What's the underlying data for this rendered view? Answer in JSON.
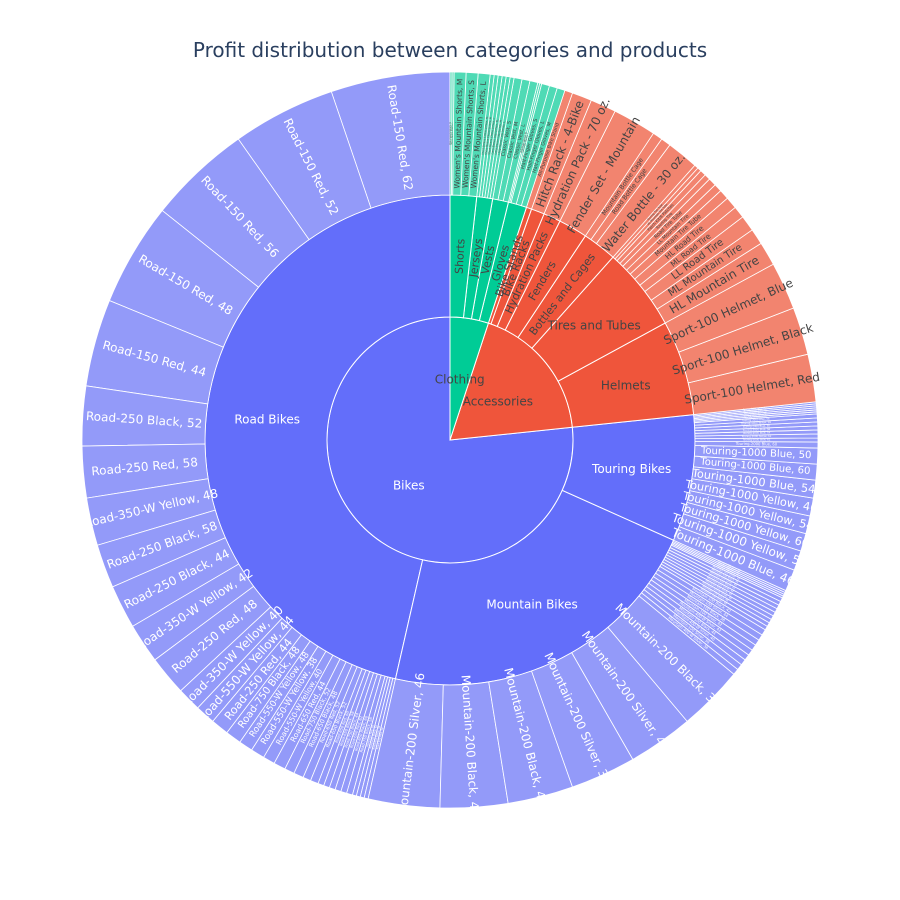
{
  "chart_data": {
    "type": "sunburst",
    "title": "Profit distribution between categories and products",
    "colors": {
      "Bikes": "#636efa",
      "Accessories": "#ef553b",
      "Clothing": "#00cc96"
    },
    "root": {
      "name": "",
      "children": [
        {
          "name": "Bikes",
          "children": [
            {
              "name": "Road Bikes",
              "children": [
                {
                  "name": "Road-150 Red, 62",
                  "value": 60
                },
                {
                  "name": "Road-150 Red, 52",
                  "value": 52
                },
                {
                  "name": "Road-150 Red, 56",
                  "value": 52
                },
                {
                  "name": "Road-150 Red, 48",
                  "value": 52
                },
                {
                  "name": "Road-150 Red, 44",
                  "value": 44
                },
                {
                  "name": "Road-250 Black, 52",
                  "value": 30
                },
                {
                  "name": "Road-250 Red, 58",
                  "value": 26
                },
                {
                  "name": "Road-350-W Yellow, 48",
                  "value": 24
                },
                {
                  "name": "Road-250 Black, 58",
                  "value": 22
                },
                {
                  "name": "Road-250 Black, 44",
                  "value": 22
                },
                {
                  "name": "Road-350-W Yellow, 42",
                  "value": 20
                },
                {
                  "name": "Road-250 Red, 48",
                  "value": 20
                },
                {
                  "name": "Road-350-W Yellow, 40",
                  "value": 12
                },
                {
                  "name": "Road-550-W Yellow, 44",
                  "value": 10
                },
                {
                  "name": "Road-250 Red, 44",
                  "value": 9
                },
                {
                  "name": "Road-750 Black, 48",
                  "value": 8
                },
                {
                  "name": "Road-550-W Yellow, 48",
                  "value": 7
                },
                {
                  "name": "Road-550-W Yellow, 38",
                  "value": 7
                },
                {
                  "name": "Road-550-W Yellow, 40",
                  "value": 6
                },
                {
                  "name": "Road-650 Red, 44",
                  "value": 6
                },
                {
                  "name": "Road-750 Black, 52",
                  "value": 5
                },
                {
                  "name": "Road-650 Black, 48",
                  "value": 5
                },
                {
                  "name": "Road-650 Red, 52",
                  "value": 4
                },
                {
                  "name": "Road-650 Black, 52",
                  "value": 4
                },
                {
                  "name": "Road-650 Red, 60",
                  "value": 3
                },
                {
                  "name": "Road-650 Black, 58",
                  "value": 3
                },
                {
                  "name": "Road-750 Black, 44",
                  "value": 3
                },
                {
                  "name": "Road-650 Red, 62",
                  "value": 3
                },
                {
                  "name": "Road-650 Black, 60",
                  "value": 3
                },
                {
                  "name": "Road-750 Black, 58",
                  "value": 3
                },
                {
                  "name": "Road-650 Red, 58",
                  "value": 2
                },
                {
                  "name": "Road-650 Black, 62",
                  "value": 2
                },
                {
                  "name": "Road-650 Black, 44",
                  "value": 2
                },
                {
                  "name": "Road-650 Red, 48",
                  "value": 2
                }
              ]
            },
            {
              "name": "Mountain Bikes",
              "children": [
                {
                  "name": "Mountain-200 Silver, 46",
                  "value": 36
                },
                {
                  "name": "Mountain-200 Black, 42",
                  "value": 34
                },
                {
                  "name": "Mountain-200 Black, 46",
                  "value": 33
                },
                {
                  "name": "Mountain-200 Silver, 38",
                  "value": 33
                },
                {
                  "name": "Mountain-200 Silver, 42",
                  "value": 33
                },
                {
                  "name": "Mountain-200 Black, 38",
                  "value": 33
                },
                {
                  "name": "Mountain-400-W Silver, 38",
                  "value": 3
                },
                {
                  "name": "Mountain-100 Silver, 38",
                  "value": 3
                },
                {
                  "name": "Mountain-400-W Silver, 40",
                  "value": 3
                },
                {
                  "name": "Mountain-100 Black, 44",
                  "value": 3
                },
                {
                  "name": "Mountain-400-W Silver, 42",
                  "value": 3
                },
                {
                  "name": "Mountain-100 Silver, 42",
                  "value": 3
                },
                {
                  "name": "Mountain-100 Black, 38",
                  "value": 3
                },
                {
                  "name": "Mountain-100 Silver, 44",
                  "value": 3
                },
                {
                  "name": "Mountain-100 Black, 42",
                  "value": 3
                },
                {
                  "name": "Mountain-100 Silver, 48",
                  "value": 2
                },
                {
                  "name": "Mountain-100 Black, 48",
                  "value": 2
                },
                {
                  "name": "Mountain-400-W Silver, 46",
                  "value": 2
                },
                {
                  "name": "Mountain-500 Black, 40",
                  "value": 2
                },
                {
                  "name": "Mountain-500 Silver, 44",
                  "value": 2
                },
                {
                  "name": "Mountain-500 Black, 42",
                  "value": 2
                },
                {
                  "name": "Mountain-500 Silver, 40",
                  "value": 2
                },
                {
                  "name": "Mountain-500 Black, 44",
                  "value": 2
                },
                {
                  "name": "Mountain-500 Silver, 42",
                  "value": 2
                },
                {
                  "name": "Mountain-500 Black, 48",
                  "value": 1
                },
                {
                  "name": "Mountain-500 Silver, 48",
                  "value": 1
                },
                {
                  "name": "Mountain-500 Black, 52",
                  "value": 1
                },
                {
                  "name": "Mountain-500 Silver, 52",
                  "value": 1
                }
              ]
            },
            {
              "name": "Touring Bikes",
              "children": [
                {
                  "name": "Touring-1000 Blue, 46",
                  "value": 11
                },
                {
                  "name": "Touring-1000 Yellow, 50",
                  "value": 10
                },
                {
                  "name": "Touring-1000 Yellow, 60",
                  "value": 9
                },
                {
                  "name": "Touring-1000 Yellow, 54",
                  "value": 9
                },
                {
                  "name": "Touring-1000 Yellow, 46",
                  "value": 9
                },
                {
                  "name": "Touring-1000 Blue, 54",
                  "value": 9
                },
                {
                  "name": "Touring-1000 Blue, 60",
                  "value": 8
                },
                {
                  "name": "Touring-1000 Blue, 50",
                  "value": 8
                },
                {
                  "name": "Touring-2000 Blue, 60",
                  "value": 3
                },
                {
                  "name": "Touring-3000 Blue, 62",
                  "value": 2
                },
                {
                  "name": "Touring-3000 Yellow, 62",
                  "value": 2
                },
                {
                  "name": "Touring-2000 Blue, 54",
                  "value": 2
                },
                {
                  "name": "Touring-3000 Blue, 58",
                  "value": 2
                },
                {
                  "name": "Touring-2000 Blue, 50",
                  "value": 2
                },
                {
                  "name": "Touring-3000 Yellow, 58",
                  "value": 2
                },
                {
                  "name": "Touring-3000 Blue, 54",
                  "value": 2
                },
                {
                  "name": "Touring-2000 Blue, 46",
                  "value": 1
                },
                {
                  "name": "Touring-3000 Yellow, 54",
                  "value": 1
                },
                {
                  "name": "Touring-3000 Blue, 50",
                  "value": 1
                },
                {
                  "name": "Touring-3000 Yellow, 50",
                  "value": 1
                },
                {
                  "name": "Touring-3000 Blue, 44",
                  "value": 1
                },
                {
                  "name": "Touring-3000 Yellow, 44",
                  "value": 1
                }
              ]
            }
          ]
        },
        {
          "name": "Accessories",
          "children": [
            {
              "name": "Helmets",
              "children": [
                {
                  "name": "Sport-100 Helmet, Red",
                  "value": 24
                },
                {
                  "name": "Sport-100 Helmet, Black",
                  "value": 24
                },
                {
                  "name": "Sport-100 Helmet, Blue",
                  "value": 24
                }
              ]
            },
            {
              "name": "Tires and Tubes",
              "children": [
                {
                  "name": "HL Mountain Tire",
                  "value": 12
                },
                {
                  "name": "ML Mountain Tire",
                  "value": 8
                },
                {
                  "name": "LL Road Tire",
                  "value": 8
                },
                {
                  "name": "ML Road Tire",
                  "value": 6
                },
                {
                  "name": "HL Road Tire",
                  "value": 6
                },
                {
                  "name": "Mountain Tire Tube",
                  "value": 5
                },
                {
                  "name": "LL Mountain Tire",
                  "value": 4
                },
                {
                  "name": "Road Tire Tube",
                  "value": 4
                },
                {
                  "name": "Touring Tire",
                  "value": 3
                },
                {
                  "name": "Patch Kit/8 Patches",
                  "value": 3
                },
                {
                  "name": "HL Mountain Tire Tube",
                  "value": 2
                },
                {
                  "name": "Touring Tire Tube",
                  "value": 2
                }
              ]
            },
            {
              "name": "Bottles and Cages",
              "children": [
                {
                  "name": "Water Bottle - 30 oz.",
                  "value": 16
                },
                {
                  "name": "Road Bottle Cage",
                  "value": 5
                },
                {
                  "name": "Mountain Bottle Cage",
                  "value": 5
                }
              ]
            },
            {
              "name": "Fenders",
              "children": [
                {
                  "name": "Fender Set - Mountain",
                  "value": 22
                }
              ]
            },
            {
              "name": "Hydration Packs",
              "children": [
                {
                  "name": "Hydration Pack - 70 oz.",
                  "value": 13
                }
              ]
            },
            {
              "name": "Bike Racks",
              "children": [
                {
                  "name": "Hitch Rack - 4-Bike",
                  "value": 10
                }
              ]
            },
            {
              "name": "Bike Stands",
              "children": [
                {
                  "name": "All-Purpose Bike Stand",
                  "value": 4
                }
              ]
            }
          ]
        },
        {
          "name": "Clothing",
          "children": [
            {
              "name": "Gloves",
              "children": [
                {
                  "name": "Half-Finger Gloves, M",
                  "value": 4
                },
                {
                  "name": "Half-Finger Gloves, L",
                  "value": 4
                },
                {
                  "name": "Half-Finger Gloves, S",
                  "value": 4
                },
                {
                  "name": "Full-Finger Gloves, L",
                  "value": 1
                },
                {
                  "name": "Full-Finger Gloves, M",
                  "value": 1
                }
              ]
            },
            {
              "name": "Vests",
              "children": [
                {
                  "name": "Classic Vest, L",
                  "value": 4
                },
                {
                  "name": "Classic Vest, M",
                  "value": 4
                },
                {
                  "name": "Classic Vest, S",
                  "value": 4
                }
              ]
            },
            {
              "name": "Jerseys",
              "children": [
                {
                  "name": "Long-Sleeve Logo Jersey, L",
                  "value": 2
                },
                {
                  "name": "Long-Sleeve Logo Jersey, M",
                  "value": 2
                },
                {
                  "name": "Long-Sleeve Logo Jersey, XL",
                  "value": 2
                },
                {
                  "name": "Short-Sleeve Classic Jersey, L",
                  "value": 2
                },
                {
                  "name": "Short-Sleeve Classic Jersey, M",
                  "value": 2
                },
                {
                  "name": "Short-Sleeve Classic Jersey, XL",
                  "value": 2
                }
              ]
            },
            {
              "name": "Shorts",
              "children": [
                {
                  "name": "Women's Mountain Shorts, L",
                  "value": 6
                },
                {
                  "name": "Women's Mountain Shorts, S",
                  "value": 6
                },
                {
                  "name": "Women's Mountain Shorts, M",
                  "value": 6
                },
                {
                  "name": "Men's Sports Shorts, L",
                  "value": 1
                },
                {
                  "name": "Men's Sports Shorts, M",
                  "value": 1
                }
              ]
            }
          ]
        }
      ]
    }
  }
}
